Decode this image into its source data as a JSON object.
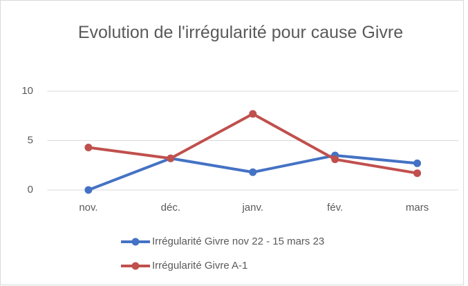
{
  "chart_data": {
    "type": "line",
    "title": "Evolution de l'irrégularité pour cause Givre",
    "categories": [
      "nov.",
      "déc.",
      "janv.",
      "fév.",
      "mars"
    ],
    "series": [
      {
        "name": "Irrégularité Givre nov 22 - 15 mars 23",
        "color": "#4472c4",
        "values": [
          0,
          3.2,
          1.8,
          3.5,
          2.7
        ]
      },
      {
        "name": "Irrégularité Givre A-1",
        "color": "#c0504d",
        "values": [
          4.3,
          3.2,
          7.7,
          3.1,
          1.7
        ]
      }
    ],
    "ylim": [
      0,
      10
    ],
    "yticks": [
      0,
      5,
      10
    ],
    "grid": true,
    "legend": "bottom"
  }
}
